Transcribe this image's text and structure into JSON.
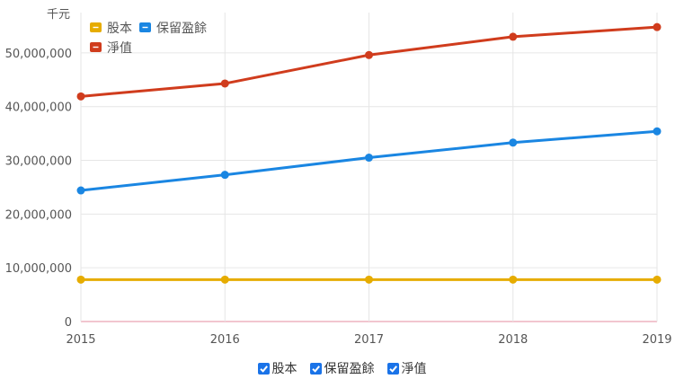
{
  "chart_data": {
    "type": "line",
    "unit_label": "千元",
    "x": [
      "2015",
      "2016",
      "2017",
      "2018",
      "2019"
    ],
    "ylim": [
      0,
      57500000
    ],
    "yticks": [
      0,
      10000000,
      20000000,
      30000000,
      40000000,
      50000000
    ],
    "ytick_labels": [
      "0",
      "10,000,000",
      "20,000,000",
      "30,000,000",
      "40,000,000",
      "50,000,000"
    ],
    "grid": true,
    "legend_position": "top-left",
    "series": [
      {
        "name": "股本",
        "color": "#e6ac00",
        "values": [
          7800000,
          7800000,
          7800000,
          7800000,
          7800000
        ]
      },
      {
        "name": "保留盈餘",
        "color": "#1a86e2",
        "values": [
          24400000,
          27300000,
          30500000,
          33300000,
          35400000
        ]
      },
      {
        "name": "淨值",
        "color": "#d03c1d",
        "values": [
          41900000,
          44300000,
          49600000,
          53000000,
          54800000
        ]
      }
    ]
  },
  "controls": [
    {
      "label": "股本",
      "checked": true
    },
    {
      "label": "保留盈餘",
      "checked": true
    },
    {
      "label": "淨值",
      "checked": true
    }
  ]
}
